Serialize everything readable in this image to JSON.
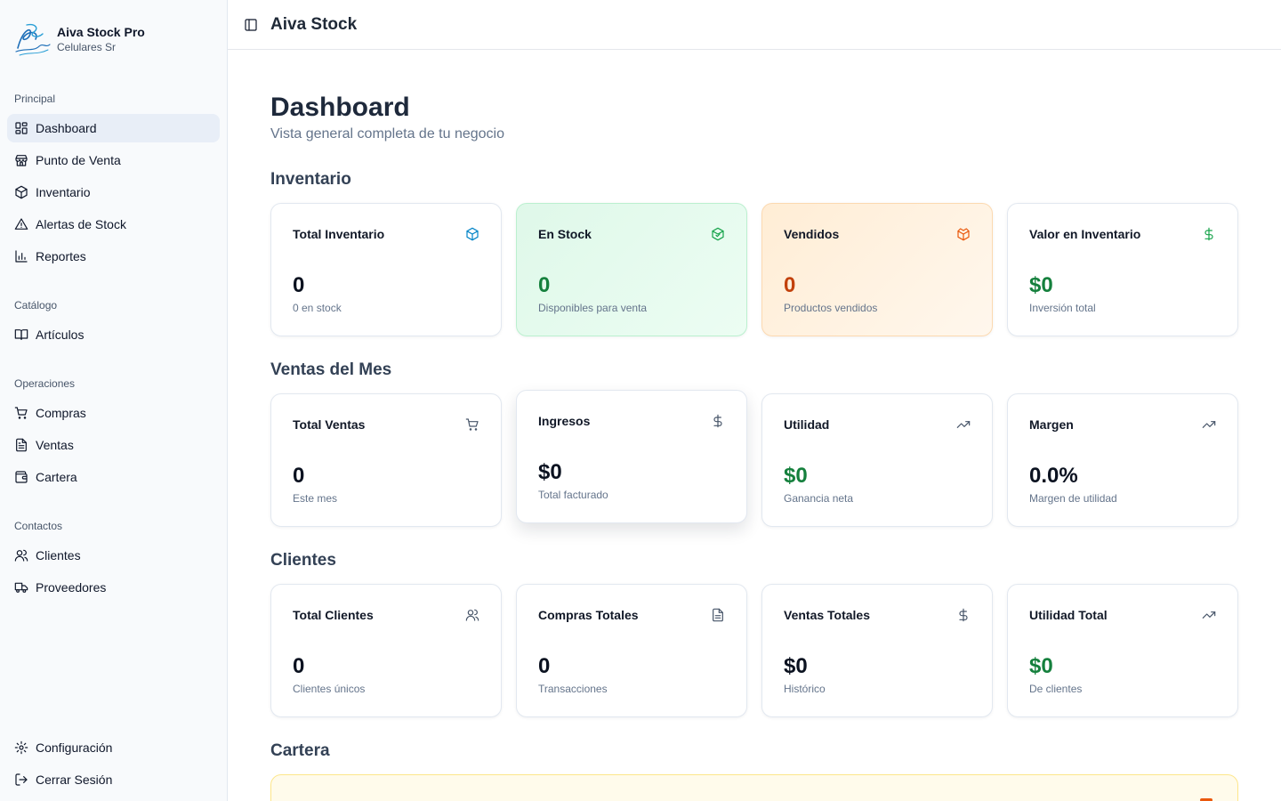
{
  "brand": {
    "title": "Aiva Stock Pro",
    "subtitle": "Celulares Sr"
  },
  "sidebar": {
    "groups": [
      {
        "label": "Principal",
        "items": [
          {
            "label": "Dashboard",
            "icon": "layout-dashboard-icon",
            "active": true
          },
          {
            "label": "Punto de Venta",
            "icon": "store-icon"
          },
          {
            "label": "Inventario",
            "icon": "package-icon"
          },
          {
            "label": "Alertas de Stock",
            "icon": "alert-triangle-icon"
          },
          {
            "label": "Reportes",
            "icon": "bar-chart-icon"
          }
        ]
      },
      {
        "label": "Catálogo",
        "items": [
          {
            "label": "Artículos",
            "icon": "book-open-icon"
          }
        ]
      },
      {
        "label": "Operaciones",
        "items": [
          {
            "label": "Compras",
            "icon": "shopping-cart-icon"
          },
          {
            "label": "Ventas",
            "icon": "file-text-icon"
          },
          {
            "label": "Cartera",
            "icon": "wallet-icon"
          }
        ]
      },
      {
        "label": "Contactos",
        "items": [
          {
            "label": "Clientes",
            "icon": "users-icon"
          },
          {
            "label": "Proveedores",
            "icon": "truck-icon"
          }
        ]
      }
    ],
    "footer": [
      {
        "label": "Configuración",
        "icon": "settings-icon"
      },
      {
        "label": "Cerrar Sesión",
        "icon": "log-out-icon"
      }
    ]
  },
  "topbar": {
    "title": "Aiva Stock",
    "toggle_icon": "panel-left-icon"
  },
  "page": {
    "title": "Dashboard",
    "subtitle": "Vista general completa de tu negocio"
  },
  "sections": {
    "inventario": {
      "title": "Inventario",
      "cards": [
        {
          "title": "Total Inventario",
          "value": "0",
          "desc": "0 en stock",
          "icon": "package-icon",
          "icon_color": "#0284c7"
        },
        {
          "title": "En Stock",
          "value": "0",
          "desc": "Disponibles para venta",
          "icon": "package-check-icon",
          "icon_color": "#16a34a"
        },
        {
          "title": "Vendidos",
          "value": "0",
          "desc": "Productos vendidos",
          "icon": "package-open-icon",
          "icon_color": "#ea580c"
        },
        {
          "title": "Valor en Inventario",
          "value": "$0",
          "desc": "Inversión total",
          "icon": "dollar-icon",
          "icon_color": "#16a34a"
        }
      ]
    },
    "ventas": {
      "title": "Ventas del Mes",
      "cards": [
        {
          "title": "Total Ventas",
          "value": "0",
          "desc": "Este mes",
          "icon": "shopping-cart-icon"
        },
        {
          "title": "Ingresos",
          "value": "$0",
          "desc": "Total facturado",
          "icon": "dollar-icon"
        },
        {
          "title": "Utilidad",
          "value": "$0",
          "desc": "Ganancia neta",
          "icon": "trending-up-icon"
        },
        {
          "title": "Margen",
          "value": "0.0%",
          "desc": "Margen de utilidad",
          "icon": "trending-up-icon"
        }
      ]
    },
    "clientes": {
      "title": "Clientes",
      "cards": [
        {
          "title": "Total Clientes",
          "value": "0",
          "desc": "Clientes únicos",
          "icon": "users-icon"
        },
        {
          "title": "Compras Totales",
          "value": "0",
          "desc": "Transacciones",
          "icon": "file-text-icon"
        },
        {
          "title": "Ventas Totales",
          "value": "$0",
          "desc": "Histórico",
          "icon": "dollar-icon"
        },
        {
          "title": "Utilidad Total",
          "value": "$0",
          "desc": "De clientes",
          "icon": "trending-up-icon"
        }
      ]
    },
    "cartera": {
      "title": "Cartera"
    }
  }
}
